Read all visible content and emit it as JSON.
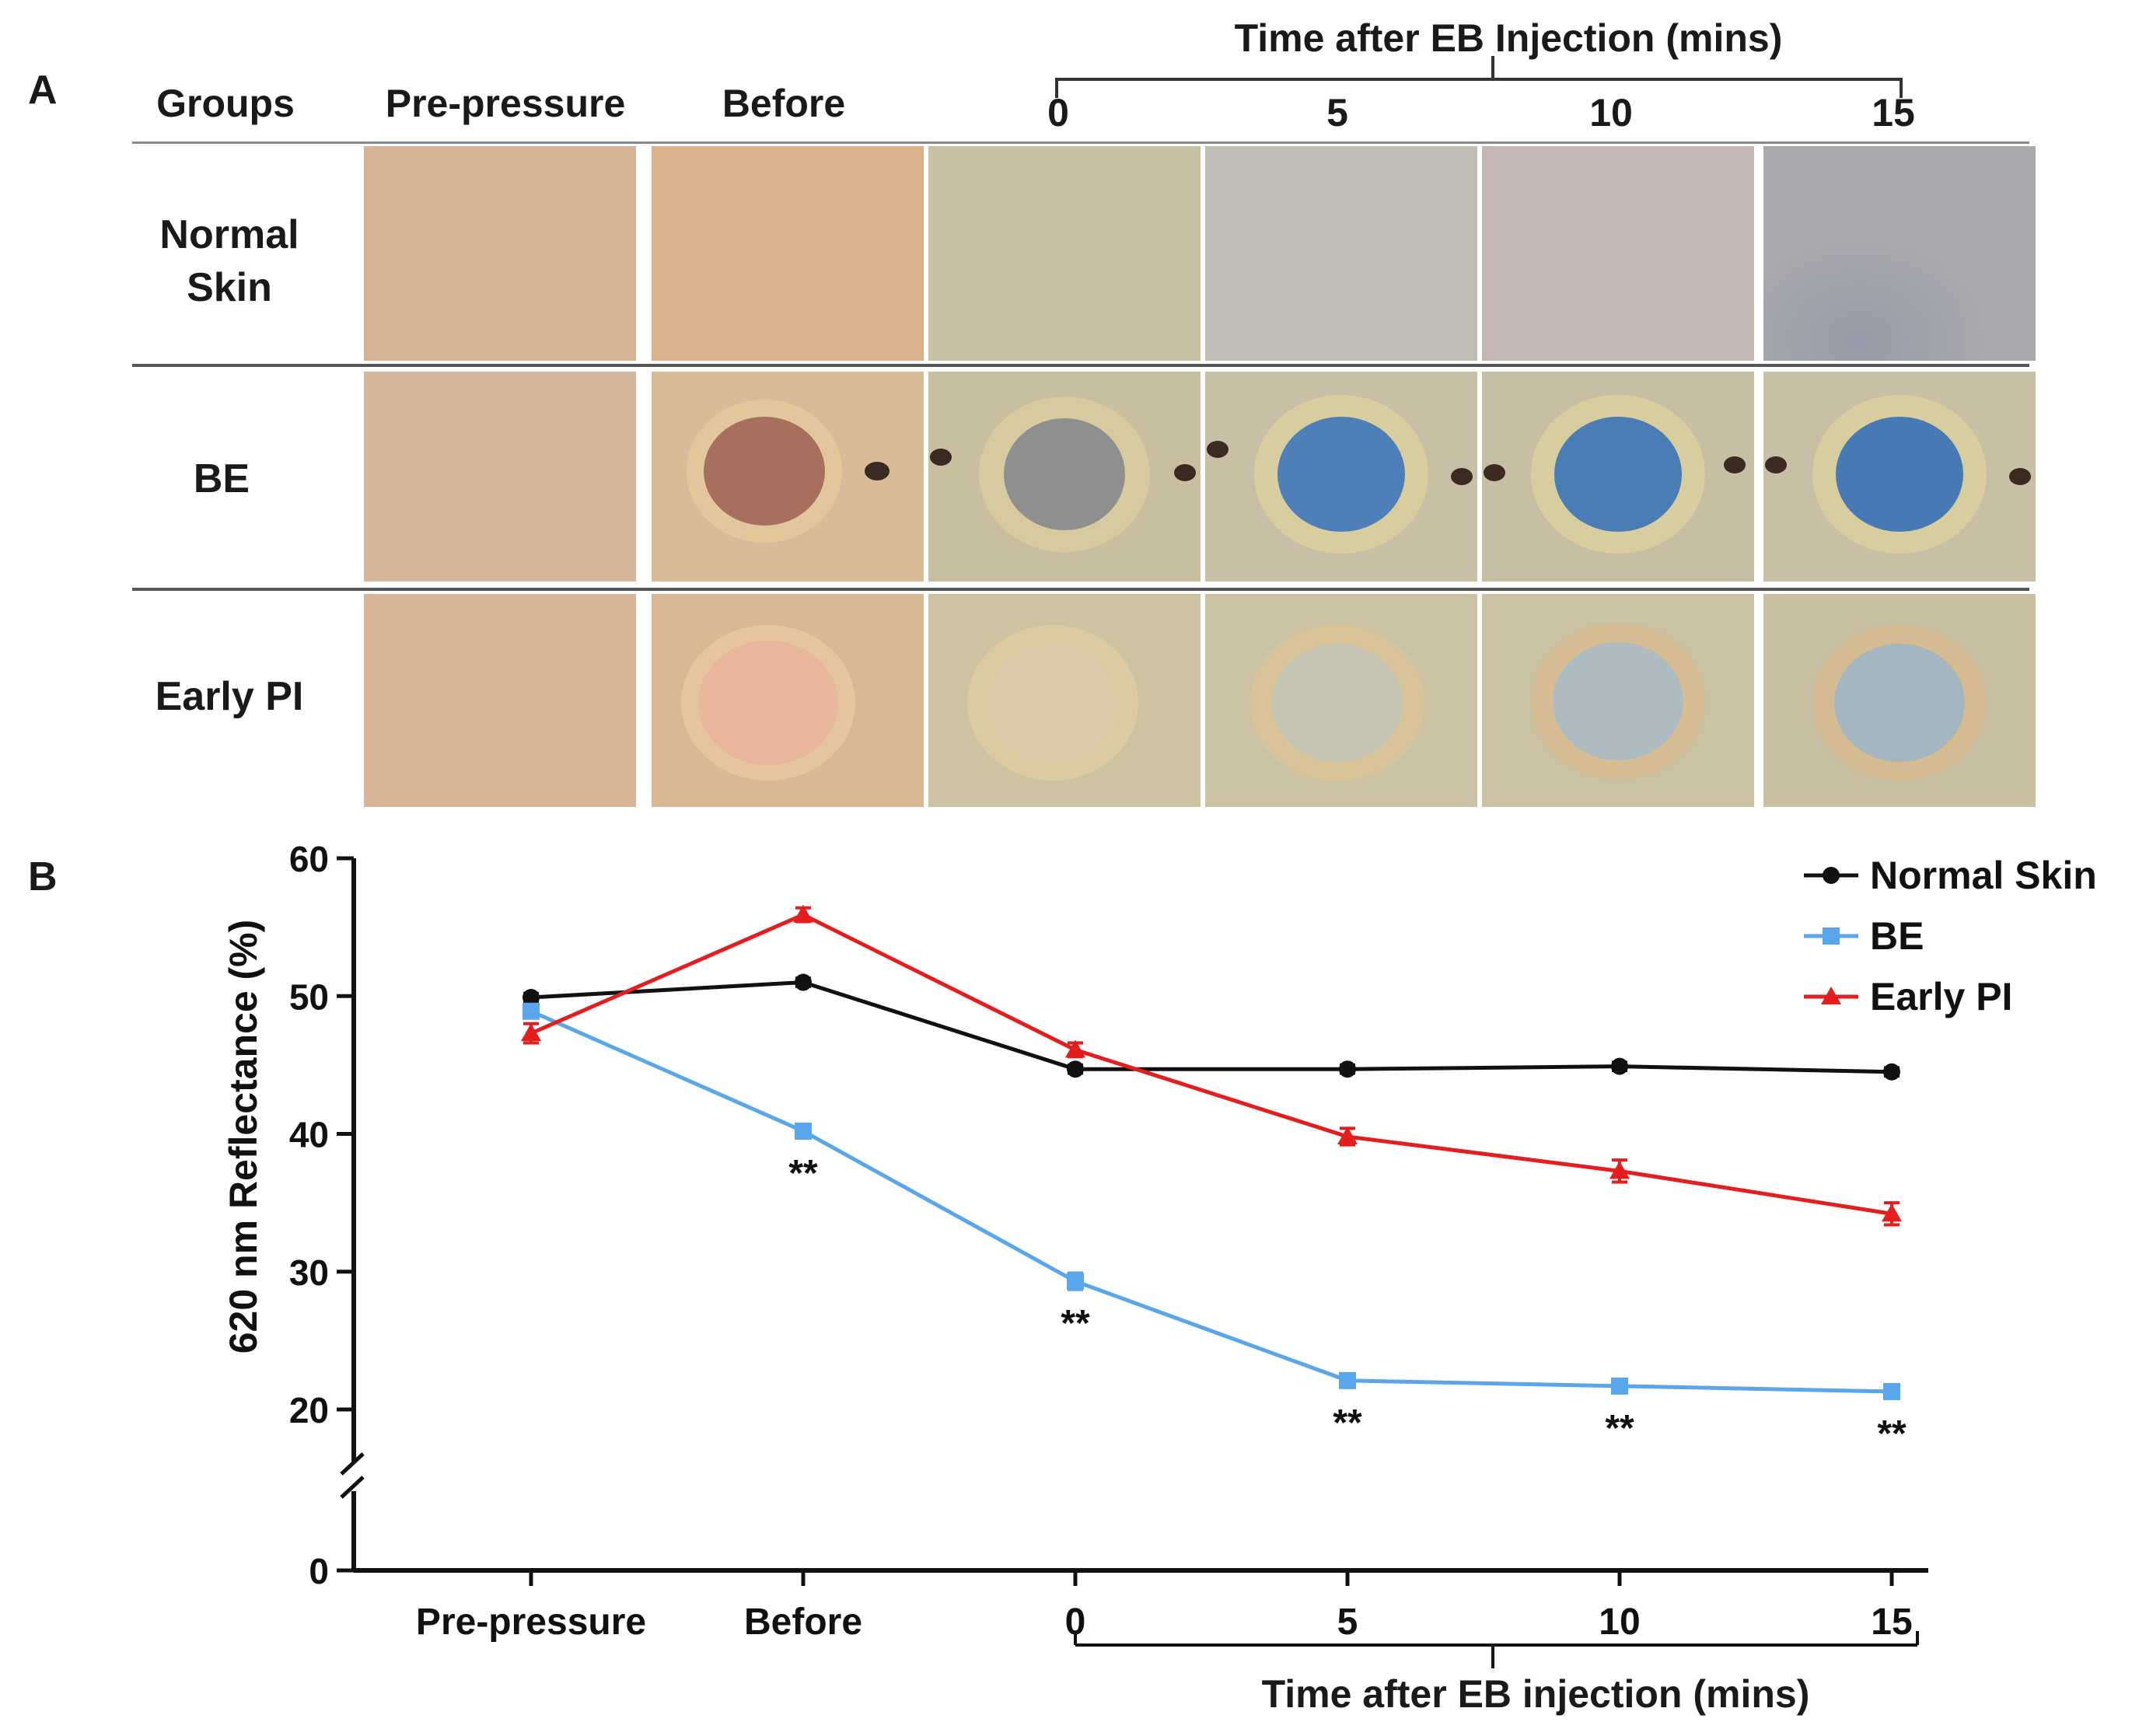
{
  "panel_a": {
    "letter": "A",
    "col_headers": [
      "Groups",
      "Pre-pressure",
      "Before"
    ],
    "time_label": "Time after EB Injection (mins)",
    "time_points": [
      "0",
      "5",
      "10",
      "15"
    ],
    "rows": [
      {
        "line1": "Normal",
        "line2": "Skin"
      },
      {
        "line1": "BE",
        "line2": ""
      },
      {
        "line1": "Early PI",
        "line2": ""
      }
    ]
  },
  "panel_b": {
    "letter": "B",
    "time_label": "Time after EB injection (mins)"
  },
  "chart_data": {
    "type": "line",
    "categories": [
      "Pre-pressure",
      "Before",
      "0",
      "5",
      "10",
      "15"
    ],
    "ylabel": "620 nm Reflectance (%)",
    "xlabel": "Time after EB injection (mins)",
    "ylim": [
      0,
      60
    ],
    "yticks": [
      0,
      20,
      30,
      40,
      50,
      60
    ],
    "axis_break": [
      0,
      20
    ],
    "legend_position": "top-right",
    "series": [
      {
        "name": "Normal Skin",
        "color": "#111111",
        "marker": "circle",
        "values": [
          49.9,
          51.0,
          44.7,
          44.7,
          44.9,
          44.5
        ],
        "errors": [
          0.3,
          0.3,
          0.3,
          0.3,
          0.3,
          0.3
        ]
      },
      {
        "name": "BE",
        "color": "#5aa6ea",
        "marker": "square",
        "values": [
          48.9,
          40.2,
          29.3,
          22.1,
          21.7,
          21.3
        ],
        "errors": [
          0.3,
          0.4,
          0.6,
          0.4,
          0.3,
          0.3
        ]
      },
      {
        "name": "Early PI",
        "color": "#e41e1e",
        "marker": "triangle",
        "values": [
          47.3,
          55.9,
          46.1,
          39.8,
          37.3,
          34.2
        ],
        "errors": [
          0.7,
          0.5,
          0.5,
          0.6,
          0.8,
          0.8
        ]
      }
    ],
    "annotations": [
      {
        "category": "Before",
        "text": "**"
      },
      {
        "category": "0",
        "text": "**"
      },
      {
        "category": "5",
        "text": "**"
      },
      {
        "category": "10",
        "text": "**"
      },
      {
        "category": "15",
        "text": "**"
      }
    ]
  }
}
